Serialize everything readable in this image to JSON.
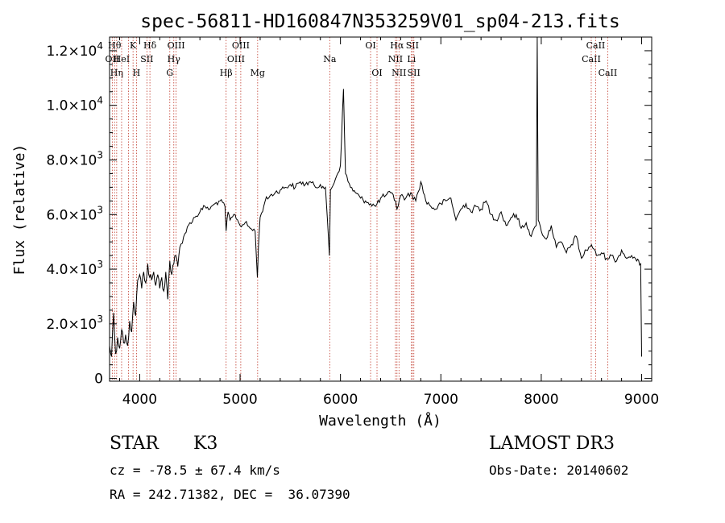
{
  "chart_data": {
    "type": "line",
    "title": "spec-56811-HD160847N353259V01_sp04-213.fits",
    "xlabel": "Wavelength (Å)",
    "ylabel": "Flux (relative)",
    "xlim": [
      3700,
      9100
    ],
    "ylim": [
      -100,
      12500
    ],
    "x_ticks": [
      {
        "value": 4000,
        "label": "4000"
      },
      {
        "value": 5000,
        "label": "5000"
      },
      {
        "value": 6000,
        "label": "6000"
      },
      {
        "value": 7000,
        "label": "7000"
      },
      {
        "value": 8000,
        "label": "8000"
      },
      {
        "value": 9000,
        "label": "9000"
      }
    ],
    "y_ticks": [
      {
        "value": 0,
        "mant": "0",
        "exp": ""
      },
      {
        "value": 2000,
        "mant": "2.0×10",
        "exp": "3"
      },
      {
        "value": 4000,
        "mant": "4.0×10",
        "exp": "3"
      },
      {
        "value": 6000,
        "mant": "6.0×10",
        "exp": "3"
      },
      {
        "value": 8000,
        "mant": "8.0×10",
        "exp": "3"
      },
      {
        "value": 10000,
        "mant": "1.0×10",
        "exp": "4"
      },
      {
        "value": 12000,
        "mant": "1.2×10",
        "exp": "4"
      }
    ],
    "series": [
      {
        "color": "#000000",
        "x": [
          3700,
          3720,
          3740,
          3760,
          3780,
          3800,
          3820,
          3840,
          3860,
          3880,
          3900,
          3920,
          3940,
          3960,
          3980,
          4000,
          4020,
          4040,
          4060,
          4080,
          4100,
          4120,
          4140,
          4160,
          4180,
          4200,
          4220,
          4240,
          4260,
          4280,
          4300,
          4320,
          4340,
          4360,
          4380,
          4400,
          4450,
          4500,
          4550,
          4600,
          4650,
          4700,
          4750,
          4800,
          4850,
          4861,
          4880,
          4900,
          4950,
          5000,
          5050,
          5100,
          5150,
          5172,
          5183,
          5200,
          5250,
          5300,
          5350,
          5400,
          5450,
          5500,
          5550,
          5600,
          5650,
          5700,
          5750,
          5800,
          5850,
          5890,
          5900,
          5950,
          6000,
          6030,
          6050,
          6100,
          6150,
          6200,
          6250,
          6300,
          6350,
          6400,
          6450,
          6500,
          6550,
          6563,
          6600,
          6650,
          6700,
          6750,
          6800,
          6850,
          6900,
          6950,
          7000,
          7050,
          7100,
          7150,
          7200,
          7250,
          7300,
          7350,
          7400,
          7450,
          7500,
          7550,
          7600,
          7650,
          7700,
          7750,
          7800,
          7850,
          7900,
          7950,
          7960,
          7970,
          8000,
          8050,
          8100,
          8150,
          8200,
          8250,
          8300,
          8350,
          8400,
          8450,
          8500,
          8550,
          8600,
          8650,
          8700,
          8750,
          8800,
          8850,
          8900,
          8950,
          8990,
          9000
        ],
        "y": [
          1200,
          800,
          2400,
          900,
          1500,
          1100,
          1800,
          1300,
          1600,
          1200,
          2100,
          1700,
          2800,
          2300,
          3600,
          3800,
          3300,
          3900,
          3500,
          4200,
          3700,
          3600,
          3900,
          3400,
          3800,
          3300,
          3700,
          3200,
          3900,
          2900,
          4300,
          3800,
          4200,
          4500,
          4100,
          4800,
          5300,
          5700,
          5900,
          6100,
          6300,
          6200,
          6400,
          6500,
          6300,
          5400,
          6100,
          5800,
          6000,
          5600,
          5700,
          5500,
          5400,
          3700,
          4800,
          5900,
          6500,
          6700,
          6800,
          6900,
          7000,
          7100,
          7000,
          7200,
          7100,
          7200,
          7000,
          7100,
          7000,
          4500,
          6900,
          7300,
          7800,
          10600,
          7500,
          7000,
          6800,
          6600,
          6500,
          6400,
          6300,
          6600,
          6700,
          6800,
          6500,
          6200,
          6700,
          6600,
          6800,
          6500,
          7200,
          6500,
          6300,
          6200,
          6400,
          6500,
          6600,
          5800,
          6200,
          6400,
          6100,
          6300,
          6200,
          6500,
          6000,
          5800,
          6100,
          5600,
          5900,
          6000,
          5500,
          5700,
          5200,
          5600,
          12500,
          5800,
          5400,
          5100,
          5600,
          4800,
          5000,
          4600,
          4900,
          5200,
          4400,
          4700,
          4900,
          4500,
          4600,
          4400,
          4500,
          4300,
          4700,
          4400,
          4500,
          4300,
          4200,
          800
        ]
      }
    ],
    "lines": [
      {
        "x": 3727,
        "label": "OII",
        "row": 1
      },
      {
        "x": 3750,
        "label": "Hθ",
        "row": 0
      },
      {
        "x": 3771,
        "label": "Hη",
        "row": 2
      },
      {
        "x": 3820,
        "label": "HeI",
        "row": 1
      },
      {
        "x": 3889,
        "label": "",
        "row": -1
      },
      {
        "x": 3934,
        "label": "K",
        "row": 0
      },
      {
        "x": 3968,
        "label": "H",
        "row": 2
      },
      {
        "x": 4072,
        "label": "SII",
        "row": 1
      },
      {
        "x": 4102,
        "label": "Hδ",
        "row": 0
      },
      {
        "x": 4300,
        "label": "G",
        "row": 2
      },
      {
        "x": 4340,
        "label": "Hγ",
        "row": 1
      },
      {
        "x": 4363,
        "label": "OIII",
        "row": 0
      },
      {
        "x": 4861,
        "label": "Hβ",
        "row": 2
      },
      {
        "x": 4959,
        "label": "OIII",
        "row": 1
      },
      {
        "x": 5007,
        "label": "OIII",
        "row": 0
      },
      {
        "x": 5175,
        "label": "Mg",
        "row": 2
      },
      {
        "x": 5893,
        "label": "Na",
        "row": 1
      },
      {
        "x": 6300,
        "label": "OI",
        "row": 0
      },
      {
        "x": 6364,
        "label": "OI",
        "row": 2
      },
      {
        "x": 6548,
        "label": "NII",
        "row": 1
      },
      {
        "x": 6563,
        "label": "Hα",
        "row": 0
      },
      {
        "x": 6583,
        "label": "NII",
        "row": 2
      },
      {
        "x": 6707,
        "label": "Li",
        "row": 1
      },
      {
        "x": 6716,
        "label": "SII",
        "row": 0
      },
      {
        "x": 6731,
        "label": "SII",
        "row": 2
      },
      {
        "x": 8498,
        "label": "CaII",
        "row": 1
      },
      {
        "x": 8542,
        "label": "CaII",
        "row": 0
      },
      {
        "x": 8662,
        "label": "CaII",
        "row": 2
      }
    ]
  },
  "info": {
    "object_class": "STAR",
    "subclass": "K3",
    "survey": "LAMOST DR3",
    "redshift": "cz = -78.5 ± 67.4 km/s",
    "obs_date": "Obs-Date: 20140602",
    "coords": "RA = 242.71382, DEC =  36.07390"
  }
}
